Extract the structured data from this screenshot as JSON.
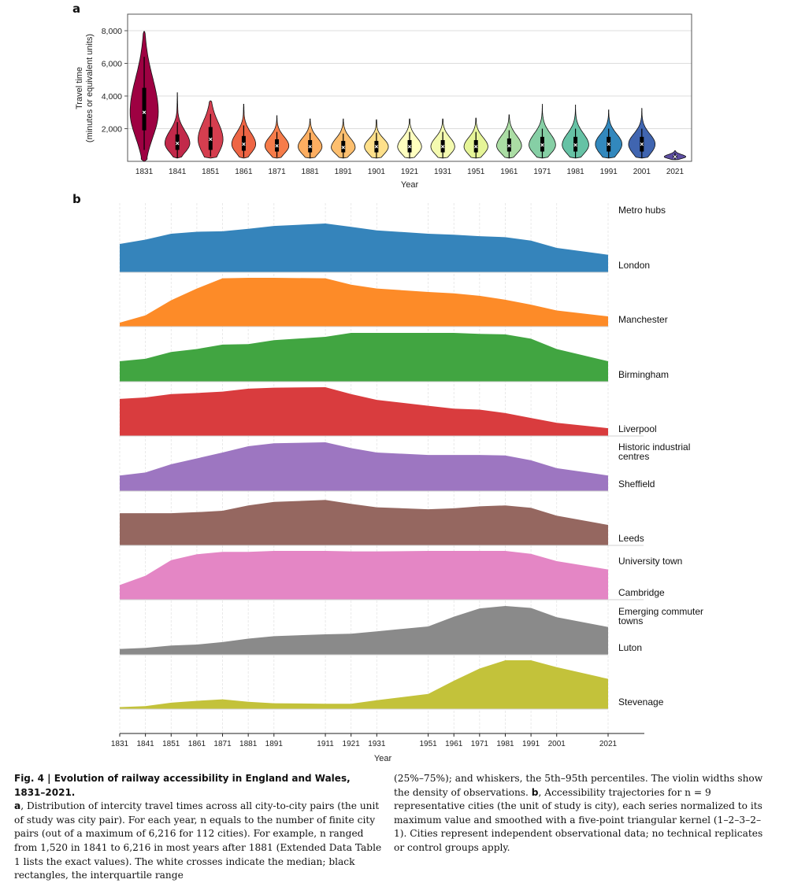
{
  "figure": {
    "panel_a_label": "a",
    "panel_b_label": "b"
  },
  "chart_data": [
    {
      "type": "violin",
      "panel": "a",
      "title": "",
      "xlabel": "Year",
      "ylabel_line1": "Travel time",
      "ylabel_line2": "(minutes or equivalent units)",
      "ylim": [
        0,
        9000
      ],
      "yticks": [
        2000,
        4000,
        6000,
        8000
      ],
      "ytick_labels": [
        "2,000",
        "4,000",
        "6,000",
        "8,000"
      ],
      "grid": "horizontal",
      "categories": [
        "1831",
        "1841",
        "1851",
        "1861",
        "1871",
        "1881",
        "1891",
        "1901",
        "1921",
        "1931",
        "1951",
        "1961",
        "1971",
        "1981",
        "1991",
        "2001",
        "2021"
      ],
      "colors": [
        "#9e0142",
        "#c2294a",
        "#d53e4f",
        "#ee6544",
        "#f67c4a",
        "#fdae61",
        "#fdbf6f",
        "#fee08b",
        "#ffffbf",
        "#f4fab0",
        "#e6f598",
        "#abdda4",
        "#86cfa5",
        "#66c2a5",
        "#3288bd",
        "#4065b0",
        "#5e4fa2"
      ],
      "series": [
        {
          "year": "1831",
          "min": 0,
          "max": 7950,
          "q1": 1900,
          "median": 3000,
          "q3": 4500,
          "p5": 700,
          "p95": 6400,
          "max_width": 0.85
        },
        {
          "year": "1841",
          "min": 200,
          "max": 4200,
          "q1": 700,
          "median": 1100,
          "q3": 1650,
          "p5": 200,
          "p95": 2400,
          "max_width": 0.75
        },
        {
          "year": "1851",
          "min": 200,
          "max": 3700,
          "q1": 700,
          "median": 1350,
          "q3": 2100,
          "p5": 300,
          "p95": 2900,
          "max_width": 0.75
        },
        {
          "year": "1861",
          "min": 200,
          "max": 3500,
          "q1": 650,
          "median": 1050,
          "q3": 1550,
          "p5": 250,
          "p95": 2200,
          "max_width": 0.72
        },
        {
          "year": "1871",
          "min": 200,
          "max": 2800,
          "q1": 600,
          "median": 950,
          "q3": 1350,
          "p5": 250,
          "p95": 1800,
          "max_width": 0.72
        },
        {
          "year": "1881",
          "min": 200,
          "max": 2600,
          "q1": 550,
          "median": 900,
          "q3": 1300,
          "p5": 200,
          "p95": 1750,
          "max_width": 0.72
        },
        {
          "year": "1891",
          "min": 200,
          "max": 2600,
          "q1": 550,
          "median": 850,
          "q3": 1250,
          "p5": 200,
          "p95": 1700,
          "max_width": 0.72
        },
        {
          "year": "1901",
          "min": 200,
          "max": 2550,
          "q1": 550,
          "median": 900,
          "q3": 1250,
          "p5": 200,
          "p95": 1750,
          "max_width": 0.72
        },
        {
          "year": "1921",
          "min": 200,
          "max": 2600,
          "q1": 550,
          "median": 900,
          "q3": 1300,
          "p5": 200,
          "p95": 1800,
          "max_width": 0.72
        },
        {
          "year": "1931",
          "min": 200,
          "max": 2600,
          "q1": 550,
          "median": 900,
          "q3": 1300,
          "p5": 200,
          "p95": 1800,
          "max_width": 0.72
        },
        {
          "year": "1951",
          "min": 200,
          "max": 2650,
          "q1": 550,
          "median": 900,
          "q3": 1300,
          "p5": 200,
          "p95": 1800,
          "max_width": 0.72
        },
        {
          "year": "1961",
          "min": 200,
          "max": 2850,
          "q1": 600,
          "median": 950,
          "q3": 1400,
          "p5": 200,
          "p95": 1900,
          "max_width": 0.75
        },
        {
          "year": "1971",
          "min": 200,
          "max": 3500,
          "q1": 600,
          "median": 1000,
          "q3": 1500,
          "p5": 200,
          "p95": 2000,
          "max_width": 0.8
        },
        {
          "year": "1981",
          "min": 200,
          "max": 3450,
          "q1": 600,
          "median": 1000,
          "q3": 1500,
          "p5": 200,
          "p95": 2000,
          "max_width": 0.8
        },
        {
          "year": "1991",
          "min": 200,
          "max": 3150,
          "q1": 600,
          "median": 1050,
          "q3": 1500,
          "p5": 200,
          "p95": 2000,
          "max_width": 0.8
        },
        {
          "year": "2001",
          "min": 200,
          "max": 3250,
          "q1": 600,
          "median": 1050,
          "q3": 1500,
          "p5": 200,
          "p95": 2000,
          "max_width": 0.8
        },
        {
          "year": "2021",
          "min": 100,
          "max": 650,
          "q1": 200,
          "median": 280,
          "q3": 380,
          "p5": 120,
          "p95": 500,
          "max_width": 0.65
        }
      ],
      "annotations": "white crosses = median; black rectangles = IQR; whiskers = 5th-95th percentiles"
    },
    {
      "type": "area",
      "panel": "b",
      "xlabel": "Year",
      "xlim": [
        1831,
        2036
      ],
      "x": [
        1831,
        1841,
        1851,
        1861,
        1871,
        1881,
        1891,
        1911,
        1921,
        1931,
        1951,
        1961,
        1971,
        1981,
        1991,
        2001,
        2021
      ],
      "xtick_labels": [
        "1831",
        "1841",
        "1851",
        "1861",
        "1871",
        "1881",
        "1891",
        "1911",
        "1921",
        "1931",
        "1951",
        "1961",
        "1971",
        "1981",
        "1991",
        "2001",
        "2021"
      ],
      "ylim": [
        0,
        1
      ],
      "grid": "vertical-dashed",
      "series": [
        {
          "name": "London",
          "group": "Metro hubs",
          "color": "#3584bb",
          "values": [
            0.58,
            0.67,
            0.79,
            0.83,
            0.84,
            0.89,
            0.95,
            1.0,
            0.93,
            0.86,
            0.79,
            0.77,
            0.74,
            0.72,
            0.65,
            0.5,
            0.36
          ]
        },
        {
          "name": "Manchester",
          "group": "",
          "color": "#fd8b28",
          "values": [
            0.08,
            0.23,
            0.54,
            0.78,
            0.99,
            1.0,
            1.0,
            0.99,
            0.86,
            0.78,
            0.71,
            0.68,
            0.63,
            0.55,
            0.45,
            0.33,
            0.21
          ]
        },
        {
          "name": "Birmingham",
          "group": "",
          "color": "#41a541",
          "values": [
            0.42,
            0.47,
            0.61,
            0.67,
            0.76,
            0.77,
            0.85,
            0.92,
            1.0,
            1.0,
            1.0,
            1.0,
            0.98,
            0.97,
            0.88,
            0.67,
            0.42
          ]
        },
        {
          "name": "Liverpool",
          "group": "",
          "color": "#d93c3e",
          "values": [
            0.76,
            0.79,
            0.86,
            0.88,
            0.91,
            0.97,
            0.99,
            1.0,
            0.86,
            0.74,
            0.62,
            0.56,
            0.54,
            0.47,
            0.37,
            0.27,
            0.16
          ]
        },
        {
          "name": "Sheffield",
          "group": "Historic industrial centres",
          "color": "#9d76c1",
          "values": [
            0.32,
            0.38,
            0.55,
            0.67,
            0.79,
            0.92,
            0.98,
            1.0,
            0.88,
            0.79,
            0.74,
            0.74,
            0.74,
            0.73,
            0.63,
            0.47,
            0.32
          ]
        },
        {
          "name": "Leeds",
          "group": "",
          "color": "#956760",
          "values": [
            0.66,
            0.66,
            0.66,
            0.68,
            0.71,
            0.82,
            0.89,
            0.93,
            0.85,
            0.78,
            0.74,
            0.76,
            0.8,
            0.82,
            0.77,
            0.61,
            0.42
          ]
        },
        {
          "name": "Cambridge",
          "group": "University town",
          "color": "#e486c5",
          "values": [
            0.3,
            0.49,
            0.81,
            0.93,
            0.98,
            0.98,
            1.0,
            1.0,
            0.99,
            0.99,
            1.0,
            1.0,
            1.0,
            1.0,
            0.94,
            0.79,
            0.62
          ]
        },
        {
          "name": "Luton",
          "group": "Emerging commuter towns",
          "color": "#8a8a8a",
          "values": [
            0.12,
            0.14,
            0.19,
            0.21,
            0.26,
            0.33,
            0.38,
            0.42,
            0.43,
            0.48,
            0.58,
            0.78,
            0.95,
            1.0,
            0.96,
            0.77,
            0.57
          ]
        },
        {
          "name": "Stevenage",
          "group": "",
          "color": "#c3c23a",
          "values": [
            0.04,
            0.06,
            0.13,
            0.17,
            0.2,
            0.15,
            0.12,
            0.11,
            0.11,
            0.18,
            0.31,
            0.58,
            0.83,
            1.0,
            1.0,
            0.86,
            0.62
          ]
        }
      ],
      "group_labels": [
        "Metro hubs",
        "Historic industrial centres",
        "University town",
        "Emerging commuter towns"
      ]
    }
  ],
  "caption": {
    "title": "Fig. 4 | Evolution of railway accessibility in England and Wales, 1831–2021.",
    "a_label": "a",
    "a_text": ", Distribution of intercity travel times across all city-to-city pairs (the unit of study was city pair). For each year, n equals to the number of finite city pairs (out of a maximum of 6,216 for 112 cities). For example, n ranged from 1,520 in 1841 to 6,216 in most years after 1881 (Extended Data Table 1 lists the exact values). The white crosses indicate the median; black rectangles, the interquartile range",
    "right_text_1": "(25%–75%); and whiskers, the 5th–95th percentiles. The violin widths show the density of observations. ",
    "b_label": "b",
    "right_text_2": ", Accessibility trajectories for n = 9 representative cities (the unit of study is city), each series normalized to its maximum value and smoothed with a five-point triangular kernel (1–2–3–2–1). Cities represent independent observational data; no technical replicates or control groups apply."
  }
}
